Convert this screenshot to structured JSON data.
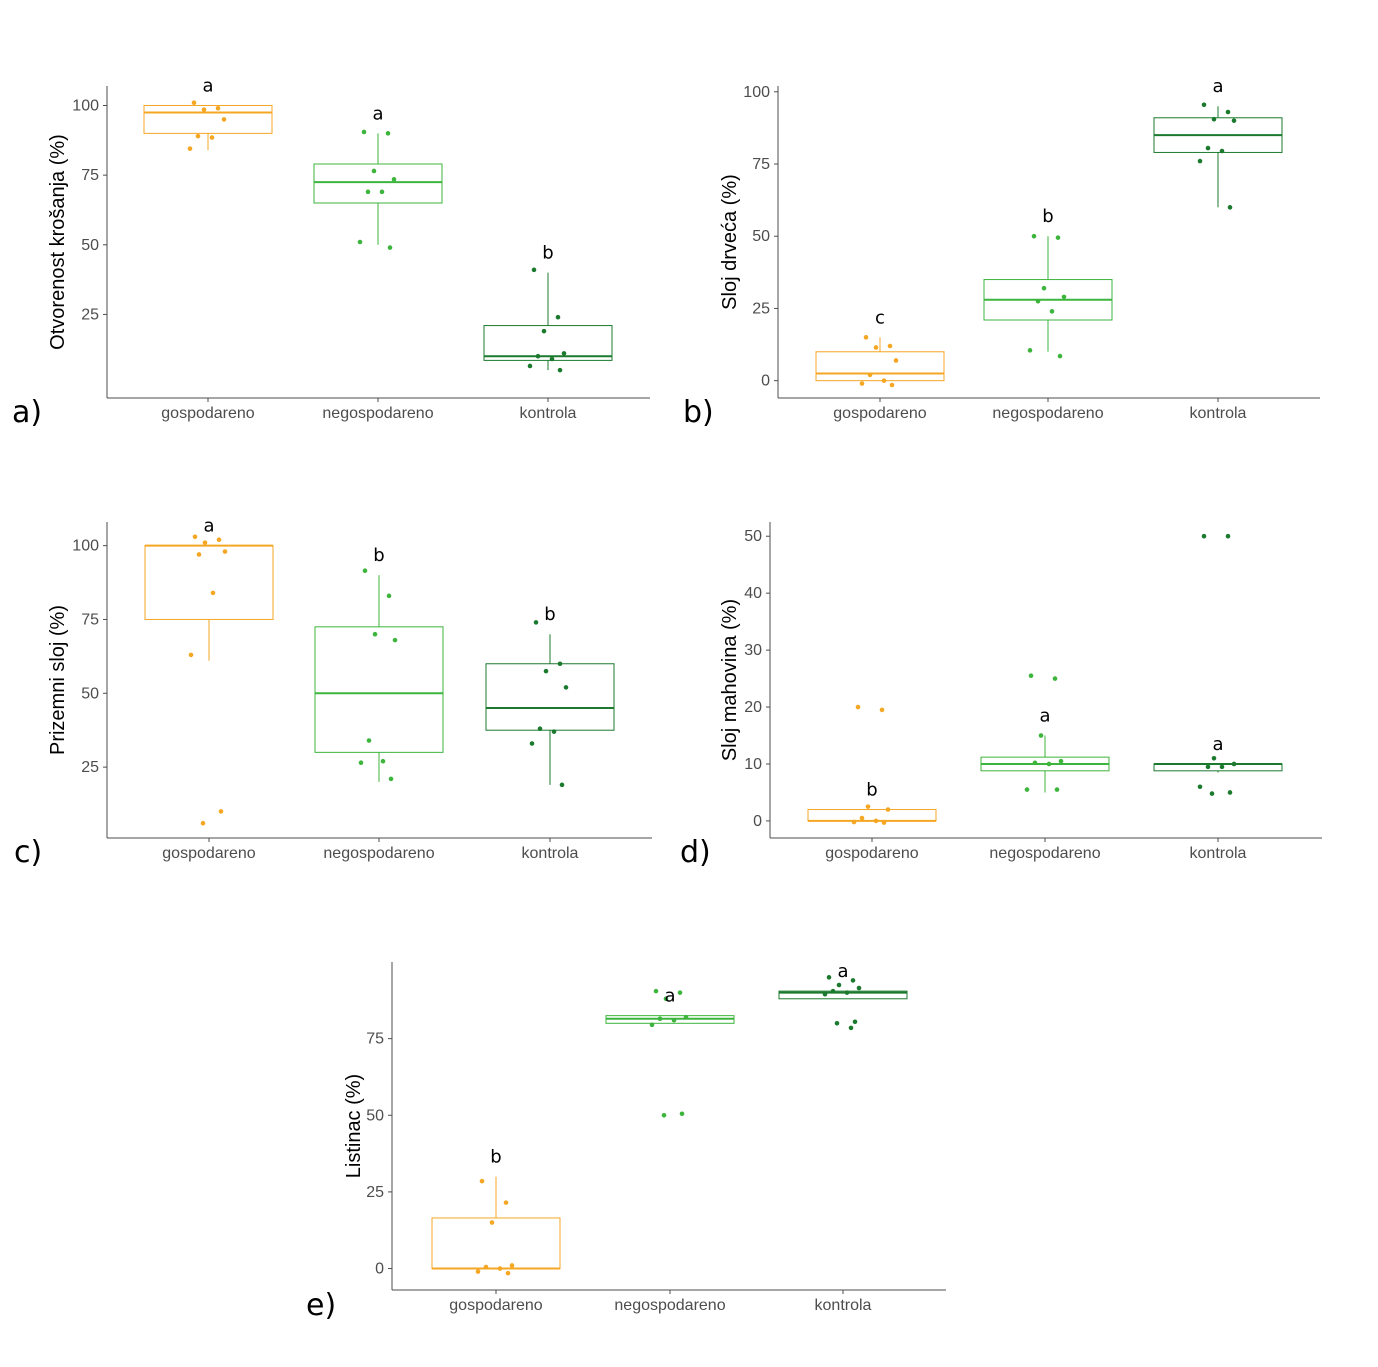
{
  "colors": {
    "gospodareno": "#F5A623",
    "negospodareno": "#3DB53D",
    "kontrola": "#1B7A2E",
    "axis": "#4d4d4d"
  },
  "chart_data": [
    {
      "panel": "a)",
      "type": "box",
      "ylabel": "Otvorenost krošanja (%)",
      "categories": [
        "gospodareno",
        "negospodareno",
        "kontrola"
      ],
      "ylim": [
        -5,
        107
      ],
      "yticks": [
        25,
        50,
        75,
        100
      ],
      "boxes": [
        {
          "q1": 90,
          "median": 97.5,
          "q3": 100,
          "whisker_low": 84,
          "whisker_high": 100,
          "letter": "a",
          "points": [
            101,
            99,
            98.5,
            95,
            89,
            88.5,
            84.5
          ]
        },
        {
          "q1": 65,
          "median": 72.5,
          "q3": 79,
          "whisker_low": 50,
          "whisker_high": 90,
          "letter": "a",
          "points": [
            90.5,
            90,
            76.5,
            73.5,
            69,
            69,
            51,
            49
          ]
        },
        {
          "q1": 8.5,
          "median": 10,
          "q3": 21,
          "whisker_low": 5,
          "whisker_high": 40,
          "letter": "b",
          "points": [
            41,
            24,
            19,
            11,
            10,
            9,
            6.5,
            5
          ]
        }
      ]
    },
    {
      "panel": "b)",
      "type": "box",
      "ylabel": "Sloj drveća (%)",
      "categories": [
        "gospodareno",
        "negospodareno",
        "kontrola"
      ],
      "ylim": [
        -6,
        102
      ],
      "yticks": [
        0,
        25,
        50,
        75,
        100
      ],
      "boxes": [
        {
          "q1": 0,
          "median": 2.5,
          "q3": 10,
          "whisker_low": 0,
          "whisker_high": 15,
          "letter": "c",
          "points": [
            15,
            12,
            11.5,
            7,
            2,
            0,
            -1,
            -1.5
          ]
        },
        {
          "q1": 21,
          "median": 28,
          "q3": 35,
          "whisker_low": 10,
          "whisker_high": 50,
          "letter": "b",
          "points": [
            50,
            49.5,
            32,
            29,
            27.5,
            24,
            10.5,
            8.5
          ]
        },
        {
          "q1": 79,
          "median": 85,
          "q3": 91,
          "whisker_low": 60,
          "whisker_high": 95,
          "letter": "a",
          "points": [
            95.5,
            93,
            90.5,
            90,
            80.5,
            79.5,
            76,
            60
          ]
        }
      ]
    },
    {
      "panel": "c)",
      "type": "box",
      "ylabel": "Prizemni sloj (%)",
      "categories": [
        "gospodareno",
        "negospodareno",
        "kontrola"
      ],
      "ylim": [
        1,
        108
      ],
      "yticks": [
        25,
        50,
        75,
        100
      ],
      "boxes": [
        {
          "q1": 75,
          "median": 100,
          "q3": 100,
          "whisker_low": 61,
          "whisker_high": 100,
          "letter": "a",
          "points": [
            103,
            102,
            101,
            98,
            97,
            84,
            63,
            10,
            6
          ]
        },
        {
          "q1": 30,
          "median": 50,
          "q3": 72.5,
          "whisker_low": 20,
          "whisker_high": 90,
          "letter": "b",
          "points": [
            91.5,
            83,
            70,
            68,
            34,
            27,
            26.5,
            21
          ]
        },
        {
          "q1": 37.5,
          "median": 45,
          "q3": 60,
          "whisker_low": 19,
          "whisker_high": 70,
          "letter": "b",
          "points": [
            74,
            60,
            57.5,
            52,
            38,
            37,
            33,
            19
          ]
        }
      ]
    },
    {
      "panel": "d)",
      "type": "box",
      "ylabel": "Sloj mahovina (%)",
      "categories": [
        "gospodareno",
        "negospodareno",
        "kontrola"
      ],
      "ylim": [
        -3,
        52.5
      ],
      "yticks": [
        0,
        10,
        20,
        30,
        40,
        50
      ],
      "boxes": [
        {
          "q1": 0,
          "median": 0,
          "q3": 2,
          "whisker_low": 0,
          "whisker_high": 2,
          "letter": "b",
          "points": [
            20,
            19.5,
            2.5,
            2,
            0.5,
            0,
            -0.2,
            -0.3
          ]
        },
        {
          "q1": 8.8,
          "median": 10,
          "q3": 11.2,
          "whisker_low": 5,
          "whisker_high": 15,
          "letter": "a",
          "points": [
            25.5,
            25,
            15,
            10.5,
            10.2,
            10,
            5.5,
            5.5
          ]
        },
        {
          "q1": 8.8,
          "median": 10,
          "q3": 10,
          "whisker_low": 8.5,
          "whisker_high": 10,
          "letter": "a",
          "points": [
            50,
            50,
            11,
            10,
            9.5,
            9.5,
            6,
            5,
            4.8
          ]
        }
      ]
    },
    {
      "panel": "e)",
      "type": "box",
      "ylabel": "Listinac (%)",
      "categories": [
        "gospodareno",
        "negospodareno",
        "kontrola"
      ],
      "ylim": [
        -7,
        100
      ],
      "yticks": [
        0,
        25,
        50,
        75
      ],
      "boxes": [
        {
          "q1": 0,
          "median": 0,
          "q3": 16.5,
          "whisker_low": 0,
          "whisker_high": 30,
          "letter": "b",
          "points": [
            28.5,
            21.5,
            15,
            1,
            0.5,
            0,
            -1,
            -1.5
          ]
        },
        {
          "q1": 80,
          "median": 81.5,
          "q3": 82.5,
          "whisker_low": 80,
          "whisker_high": 82.5,
          "letter": "a",
          "points": [
            90.5,
            90,
            88,
            82,
            81.5,
            81,
            79.5,
            50.5,
            50
          ]
        },
        {
          "q1": 88,
          "median": 90,
          "q3": 90.5,
          "whisker_low": 88,
          "whisker_high": 90.5,
          "letter": "a",
          "points": [
            95,
            94,
            92.5,
            91.5,
            90.5,
            90,
            89.5,
            80.5,
            80,
            78.5
          ]
        }
      ]
    }
  ]
}
